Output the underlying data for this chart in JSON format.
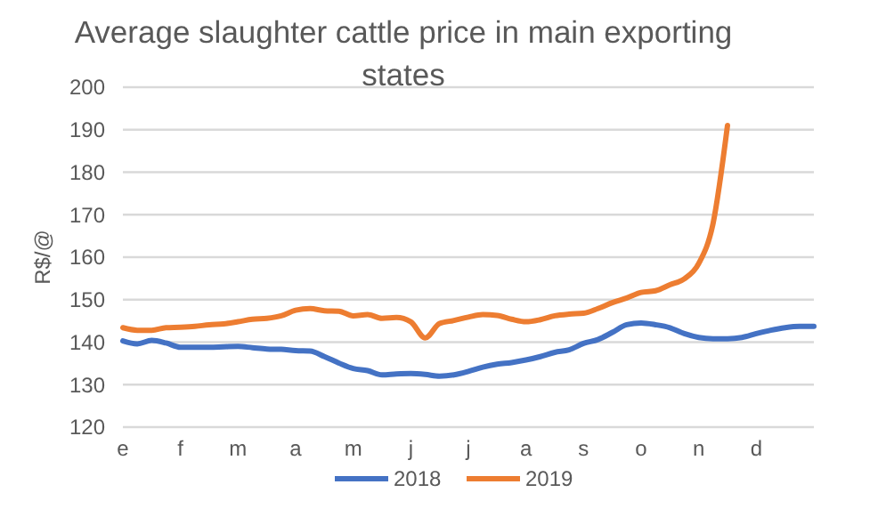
{
  "chart_data": {
    "type": "line",
    "title": "Average slaughter cattle price in main exporting states",
    "ylabel": "R$/@",
    "categories": [
      "e",
      null,
      null,
      null,
      "f",
      null,
      null,
      null,
      "m",
      null,
      null,
      null,
      "a",
      null,
      null,
      null,
      "m",
      null,
      null,
      null,
      "j",
      null,
      null,
      null,
      "j",
      null,
      null,
      null,
      "a",
      null,
      null,
      null,
      "s",
      null,
      null,
      null,
      "o",
      null,
      null,
      null,
      "n",
      null,
      null,
      null,
      "d",
      null,
      null,
      null,
      null
    ],
    "ylim": [
      120,
      200
    ],
    "yticks": [
      120,
      130,
      140,
      150,
      160,
      170,
      180,
      190,
      200
    ],
    "grid": "y",
    "legend": "bottom",
    "marker": "none",
    "line_style": "solid",
    "series": [
      {
        "name": "2018",
        "color": "#4472c4",
        "values": [
          140.3,
          139.6,
          140.4,
          139.8,
          138.8,
          138.8,
          138.8,
          138.9,
          139.0,
          138.7,
          138.4,
          138.3,
          138.0,
          137.9,
          136.6,
          135.1,
          133.8,
          133.3,
          132.3,
          132.5,
          132.6,
          132.4,
          132.0,
          132.3,
          133.1,
          134.1,
          134.8,
          135.2,
          135.8,
          136.6,
          137.6,
          138.2,
          139.7,
          140.6,
          142.3,
          144.1,
          144.5,
          144.1,
          143.4,
          142.0,
          141.1,
          140.8,
          140.8,
          141.1,
          142.0,
          142.8,
          143.4,
          143.7,
          143.7
        ]
      },
      {
        "name": "2019",
        "color": "#ed7d31",
        "values": [
          143.4,
          142.8,
          142.8,
          143.4,
          143.5,
          143.7,
          144.1,
          144.3,
          144.8,
          145.4,
          145.6,
          146.2,
          147.5,
          147.9,
          147.4,
          147.3,
          146.2,
          146.5,
          145.6,
          145.8,
          144.8,
          141.0,
          144.4,
          145.1,
          145.9,
          146.5,
          146.3,
          145.4,
          144.8,
          145.3,
          146.2,
          146.6,
          146.8,
          147.9,
          149.3,
          150.4,
          151.7,
          152.1,
          153.5,
          154.9,
          158.5,
          168.0,
          191.0,
          null,
          null,
          null,
          null,
          null,
          null
        ]
      }
    ]
  }
}
